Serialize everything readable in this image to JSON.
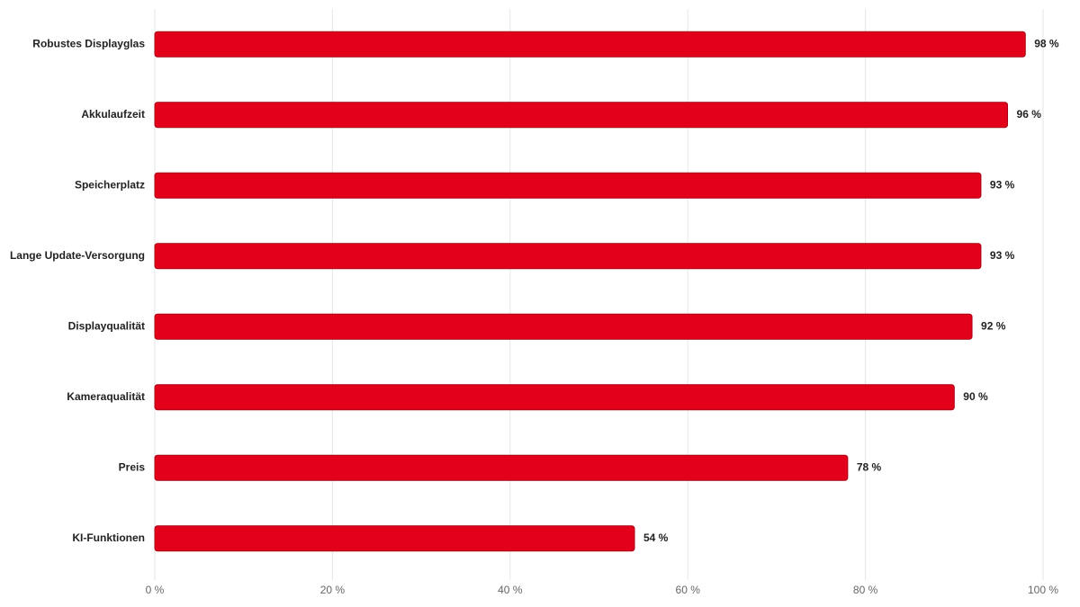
{
  "chart_data": {
    "type": "hbar",
    "categories": [
      "Robustes Displayglas",
      "Akkulaufzeit",
      "Speicherplatz",
      "Lange Update-Versorgung",
      "Displayqualität",
      "Kameraqualität",
      "Preis",
      "KI-Funktionen"
    ],
    "values": [
      98,
      96,
      93,
      93,
      92,
      90,
      78,
      54
    ],
    "value_labels": [
      "98 %",
      "96 %",
      "93 %",
      "93 %",
      "92 %",
      "90 %",
      "78 %",
      "54 %"
    ],
    "color": "#e2001a",
    "xlim": [
      0,
      100
    ],
    "xticks": [
      {
        "value": 0,
        "label": "0 %"
      },
      {
        "value": 20,
        "label": "20 %"
      },
      {
        "value": 40,
        "label": "40 %"
      },
      {
        "value": 60,
        "label": "60 %"
      },
      {
        "value": 80,
        "label": "80 %"
      },
      {
        "value": 100,
        "label": "100 %"
      }
    ],
    "grid": true
  }
}
